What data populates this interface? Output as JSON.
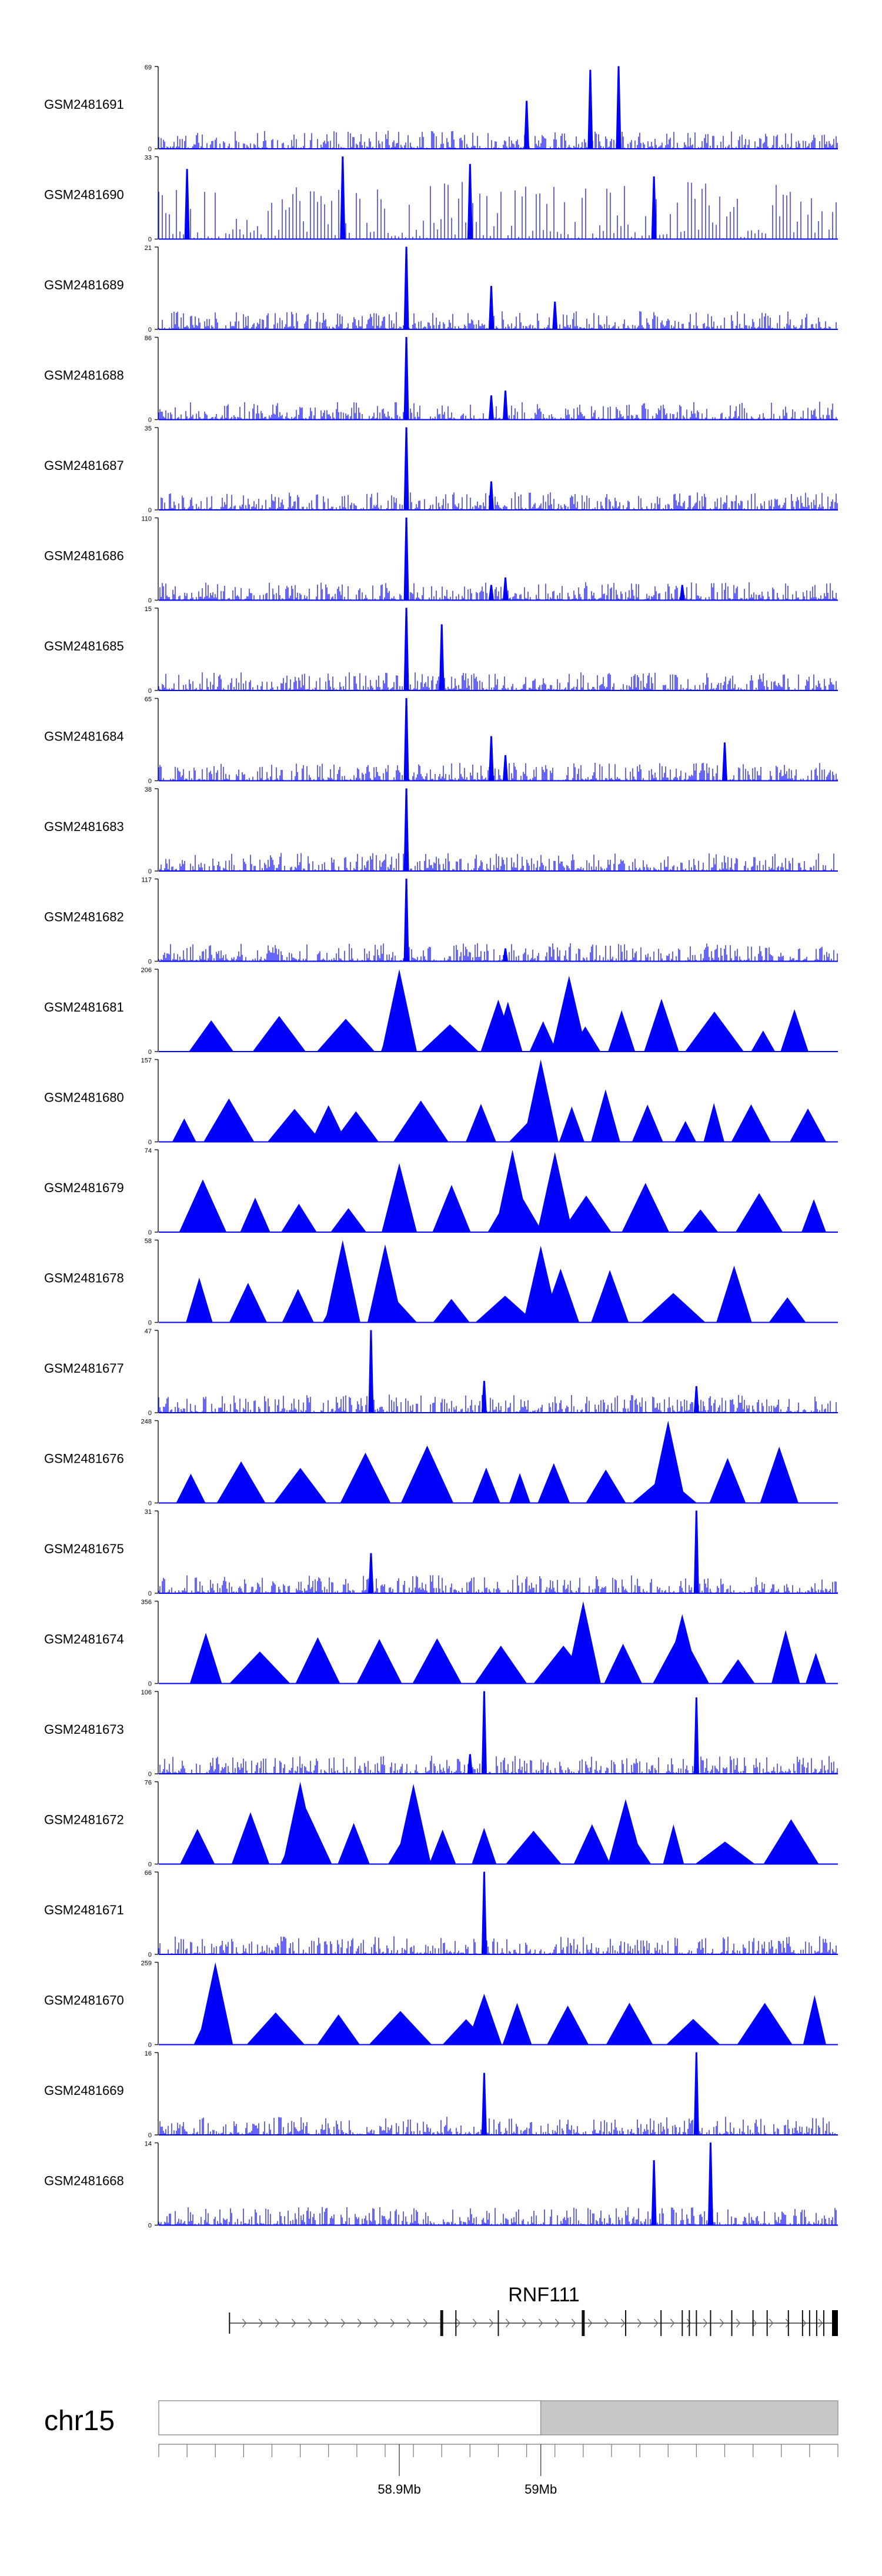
{
  "chart_data": {
    "type": "area",
    "title": "",
    "region": {
      "chromosome": "chr15",
      "start_mb": 58.73,
      "end_mb": 59.21
    },
    "axis_ticks": [
      {
        "position_mb": 58.9,
        "label": "58.9Mb"
      },
      {
        "position_mb": 59.0,
        "label": "59Mb"
      }
    ],
    "gene": {
      "name": "RNF111",
      "strand": "+",
      "start_mb": 58.78,
      "end_mb": 59.21
    },
    "series_color": "#0000ff",
    "tracks": [
      {
        "name": "GSM2481691",
        "ymax": 69,
        "style": "signal",
        "peaks": [
          [
            58.99,
            40
          ],
          [
            59.035,
            42
          ],
          [
            59.035,
            66
          ],
          [
            59.055,
            69
          ]
        ]
      },
      {
        "name": "GSM2481690",
        "ymax": 33,
        "style": "sparse",
        "peaks": [
          [
            58.75,
            28
          ],
          [
            58.86,
            33
          ],
          [
            58.95,
            30
          ],
          [
            59.08,
            25
          ]
        ]
      },
      {
        "name": "GSM2481689",
        "ymax": 21,
        "style": "signal",
        "peaks": [
          [
            58.905,
            21
          ],
          [
            58.965,
            11
          ],
          [
            59.01,
            7
          ]
        ]
      },
      {
        "name": "GSM2481688",
        "ymax": 86,
        "style": "signal",
        "peaks": [
          [
            58.905,
            86
          ],
          [
            58.965,
            25
          ],
          [
            58.975,
            30
          ]
        ]
      },
      {
        "name": "GSM2481687",
        "ymax": 35,
        "style": "signal",
        "peaks": [
          [
            58.905,
            35
          ],
          [
            58.965,
            12
          ]
        ]
      },
      {
        "name": "GSM2481686",
        "ymax": 110,
        "style": "signal",
        "peaks": [
          [
            58.905,
            110
          ],
          [
            58.965,
            20
          ],
          [
            58.975,
            30
          ],
          [
            59.1,
            20
          ]
        ]
      },
      {
        "name": "GSM2481685",
        "ymax": 15,
        "style": "signal",
        "peaks": [
          [
            58.905,
            15
          ],
          [
            58.93,
            12
          ]
        ]
      },
      {
        "name": "GSM2481684",
        "ymax": 65,
        "style": "signal",
        "peaks": [
          [
            58.905,
            65
          ],
          [
            58.965,
            35
          ],
          [
            58.975,
            20
          ],
          [
            59.13,
            30
          ]
        ]
      },
      {
        "name": "GSM2481683",
        "ymax": 38,
        "style": "signal",
        "peaks": [
          [
            58.905,
            38
          ]
        ]
      },
      {
        "name": "GSM2481682",
        "ymax": 117,
        "style": "signal",
        "peaks": [
          [
            58.905,
            117
          ],
          [
            58.975,
            18
          ]
        ]
      },
      {
        "name": "GSM2481681",
        "ymax": 206,
        "style": "triangles",
        "peaks": [
          [
            58.9,
            206
          ],
          [
            59.02,
            190
          ],
          [
            58.97,
            130
          ]
        ]
      },
      {
        "name": "GSM2481680",
        "ymax": 157,
        "style": "triangles",
        "peaks": [
          [
            59.0,
            157
          ],
          [
            58.85,
            70
          ]
        ]
      },
      {
        "name": "GSM2481679",
        "ymax": 74,
        "style": "triangles",
        "peaks": [
          [
            58.98,
            74
          ],
          [
            59.01,
            72
          ],
          [
            58.9,
            62
          ]
        ]
      },
      {
        "name": "GSM2481678",
        "ymax": 58,
        "style": "triangles",
        "peaks": [
          [
            58.86,
            58
          ],
          [
            58.89,
            55
          ],
          [
            59.0,
            54
          ]
        ]
      },
      {
        "name": "GSM2481677",
        "ymax": 47,
        "style": "signal",
        "peaks": [
          [
            58.88,
            47
          ],
          [
            58.96,
            18
          ],
          [
            59.11,
            15
          ]
        ]
      },
      {
        "name": "GSM2481676",
        "ymax": 248,
        "style": "triangles",
        "peaks": [
          [
            59.09,
            248
          ]
        ]
      },
      {
        "name": "GSM2481675",
        "ymax": 31,
        "style": "signal",
        "peaks": [
          [
            59.11,
            31
          ],
          [
            58.88,
            15
          ]
        ]
      },
      {
        "name": "GSM2481674",
        "ymax": 356,
        "style": "triangles",
        "peaks": [
          [
            59.03,
            356
          ],
          [
            59.1,
            300
          ]
        ]
      },
      {
        "name": "GSM2481673",
        "ymax": 106,
        "style": "signal",
        "peaks": [
          [
            58.96,
            106
          ],
          [
            59.11,
            98
          ],
          [
            58.95,
            25
          ]
        ]
      },
      {
        "name": "GSM2481672",
        "ymax": 76,
        "style": "triangles",
        "peaks": [
          [
            58.83,
            76
          ],
          [
            58.91,
            74
          ],
          [
            59.06,
            60
          ]
        ]
      },
      {
        "name": "GSM2481671",
        "ymax": 66,
        "style": "signal",
        "peaks": [
          [
            58.96,
            66
          ]
        ]
      },
      {
        "name": "GSM2481670",
        "ymax": 259,
        "style": "triangles",
        "peaks": [
          [
            58.77,
            259
          ],
          [
            58.96,
            160
          ]
        ]
      },
      {
        "name": "GSM2481669",
        "ymax": 16,
        "style": "signal",
        "peaks": [
          [
            59.11,
            16
          ],
          [
            58.96,
            12
          ]
        ]
      },
      {
        "name": "GSM2481668",
        "ymax": 14,
        "style": "signal",
        "peaks": [
          [
            59.12,
            14
          ],
          [
            59.08,
            11
          ]
        ]
      }
    ]
  }
}
